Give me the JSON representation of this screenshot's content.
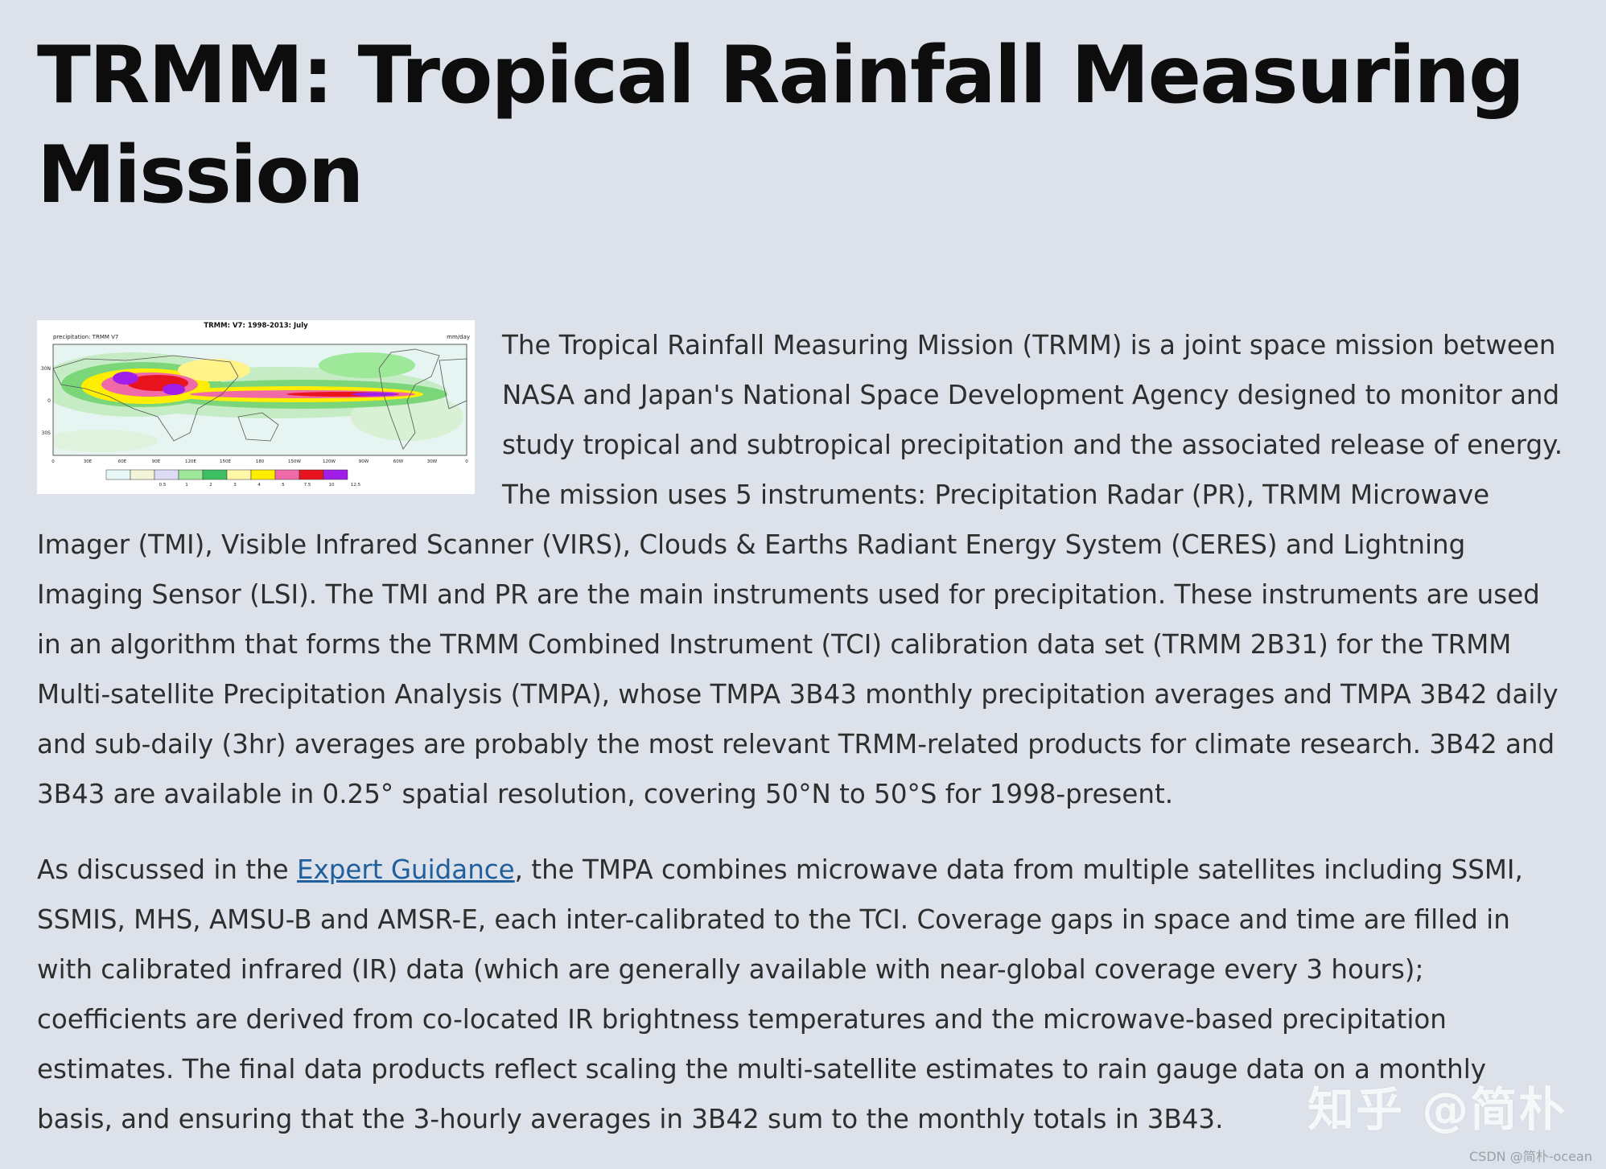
{
  "title": "TRMM: Tropical Rainfall Measuring Mission",
  "figure": {
    "title": "TRMM: V7: 1998-2013: July",
    "left_label": "precipitation: TRMM V7",
    "right_label": "mm/day",
    "lat_labels": [
      "30N",
      "0",
      "30S"
    ],
    "lon_labels": [
      "0",
      "30E",
      "60E",
      "90E",
      "120E",
      "150E",
      "180",
      "150W",
      "120W",
      "90W",
      "60W",
      "30W",
      "0"
    ],
    "colorbar_labels": [
      "0.5",
      "1",
      "2",
      "3",
      "4",
      "5",
      "7.5",
      "10",
      "12.5"
    ],
    "colorbar_colors": [
      "#e8f8f8",
      "#f4f4d8",
      "#dcdcf4",
      "#9ee89a",
      "#3cc062",
      "#fff6a8",
      "#ffee00",
      "#f06aa8",
      "#e8141e",
      "#a01ee8"
    ]
  },
  "paragraph1": "The Tropical Rainfall Measuring Mission (TRMM) is a joint space mission between NASA and Japan's National Space Development Agency designed to monitor and study tropical and subtropical precipitation and the associated release of energy. The mission uses 5 instruments: Precipitation Radar (PR), TRMM Microwave Imager (TMI), Visible Infrared Scanner (VIRS), Clouds & Earths Radiant Energy System (CERES) and Lightning Imaging Sensor (LSI).  The TMI and PR are the main instruments used for precipitation.  These instruments are used in an algorithm that forms the TRMM Combined Instrument (TCI) calibration data set (TRMM 2B31) for the TRMM Multi-satellite Precipitation Analysis (TMPA), whose TMPA 3B43 monthly precipitation averages and TMPA 3B42 daily and sub-daily (3hr) averages are probably the most relevant TRMM-related products for climate research. 3B42 and 3B43 are available in 0.25° spatial resolution, covering 50°N to 50°S for 1998-present.",
  "paragraph2": {
    "before_link": "As discussed in the ",
    "link_text": "Expert Guidance",
    "after_link": ", the TMPA combines microwave data from multiple satellites including SSMI, SSMIS, MHS, AMSU-B and AMSR-E, each inter-calibrated to the TCI.   Coverage gaps in space and time are filled in with calibrated infrared (IR) data (which are generally available with near-global coverage every 3 hours); coefficients are derived from co-located IR brightness temperatures and the microwave-based precipitation estimates. The final data products reflect scaling the multi-satellite estimates to rain gauge data on a monthly basis, and ensuring that the 3-hourly averages in 3B42 sum to the monthly totals in 3B43."
  },
  "watermark": "知乎 @简朴",
  "csdn_mark": "CSDN @简朴-ocean"
}
